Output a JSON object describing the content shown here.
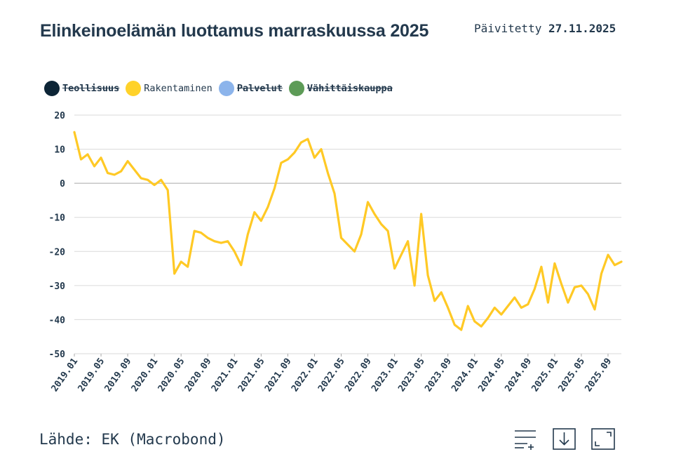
{
  "title": "Elinkeinoelämän luottamus marraskuussa 2025",
  "updated_label": "Päivitetty",
  "updated_date": "27.11.2025",
  "source": "Lähde: EK (Macrobond)",
  "legend": [
    {
      "name": "Teollisuus",
      "color": "#0d2536",
      "active": false
    },
    {
      "name": "Rakentaminen",
      "color": "#ffd22a",
      "active": true
    },
    {
      "name": "Palvelut",
      "color": "#8cb4eb",
      "active": false
    },
    {
      "name": "Vähittäiskauppa",
      "color": "#5d9b57",
      "active": false
    }
  ],
  "toolbar": [
    {
      "icon": "legend-list-add-icon"
    },
    {
      "icon": "download-icon"
    },
    {
      "icon": "fullscreen-icon"
    }
  ],
  "chart_data": {
    "type": "line",
    "ylim": [
      -50,
      20
    ],
    "yticks": [
      20,
      10,
      0,
      -10,
      -20,
      -30,
      -40,
      -50
    ],
    "xtick_labels": [
      "2019.01",
      "2019.05",
      "2019.09",
      "2020.01",
      "2020.05",
      "2020.09",
      "2021.01",
      "2021.05",
      "2021.09",
      "2022.01",
      "2022.05",
      "2022.09",
      "2023.01",
      "2023.05",
      "2023.09",
      "2024.01",
      "2024.05",
      "2024.09",
      "2025.01",
      "2025.05",
      "2025.09"
    ],
    "grid": true,
    "legend_position": "top-left",
    "series": [
      {
        "name": "Rakentaminen",
        "color": "#ffc925",
        "x_start": "2019.01",
        "x_end": "2025.11",
        "values": [
          15,
          7,
          8.5,
          5,
          7.5,
          3,
          2.5,
          3.5,
          6.5,
          4,
          1.5,
          1,
          -0.5,
          1,
          -2,
          -26.5,
          -23,
          -24.5,
          -14,
          -14.5,
          -16,
          -17,
          -17.5,
          -17,
          -20,
          -24,
          -15,
          -8.5,
          -11,
          -7,
          -1.5,
          6,
          7,
          9,
          12,
          13,
          7.5,
          10,
          3,
          -3,
          -16,
          -18,
          -20,
          -15,
          -5.5,
          -9,
          -12,
          -14,
          -25,
          -21,
          -17,
          -30,
          -9,
          -27,
          -34.5,
          -32,
          -36.5,
          -41.5,
          -43,
          -36,
          -40.5,
          -42,
          -39.5,
          -36.5,
          -38.5,
          -36,
          -33.5,
          -36.5,
          -35.5,
          -31,
          -24.5,
          -35,
          -23.5,
          -29.5,
          -35,
          -30.5,
          -30,
          -32.5,
          -37,
          -26.5,
          -21,
          -24,
          -23
        ]
      }
    ]
  }
}
